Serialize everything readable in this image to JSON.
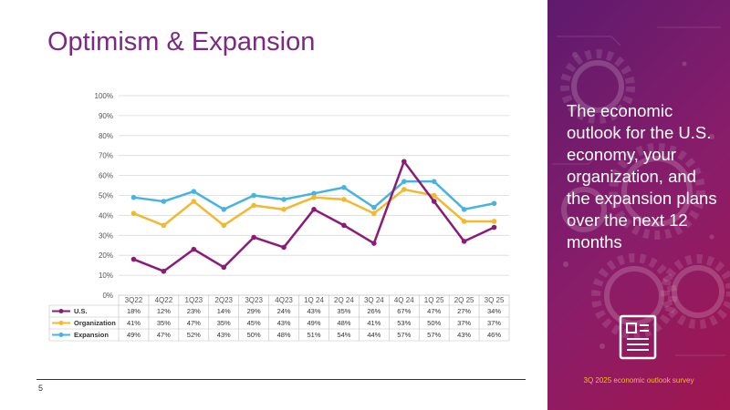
{
  "slide": {
    "title": "Optimism & Expansion",
    "page_number": "5"
  },
  "panel": {
    "description": "The economic outlook for the U.S. economy, your organization, and the expansion plans over the next 12 months",
    "survey_label": "3Q 2025 economic outlook survey",
    "icon": "document-icon"
  },
  "colors": {
    "title": "#7B2A83",
    "us": "#8B1A78",
    "organization": "#F2B82F",
    "expansion": "#46B3E0",
    "survey_label": "#F2B82F"
  },
  "chart_data": {
    "type": "line",
    "title": "",
    "xlabel": "",
    "ylabel": "",
    "ylim": [
      0,
      100
    ],
    "y_ticks": [
      "0%",
      "10%",
      "20%",
      "30%",
      "40%",
      "50%",
      "60%",
      "70%",
      "80%",
      "90%",
      "100%"
    ],
    "grid": true,
    "legend": "data-table-left",
    "categories": [
      "3Q22",
      "4Q22",
      "1Q23",
      "2Q23",
      "3Q23",
      "4Q23",
      "1Q 24",
      "2Q 24",
      "3Q 24",
      "4Q 24",
      "1Q 25",
      "2Q 25",
      "3Q 25"
    ],
    "series": [
      {
        "name": "U.S.",
        "color": "#8B1A78",
        "values": [
          18,
          12,
          23,
          14,
          29,
          24,
          43,
          35,
          26,
          67,
          47,
          27,
          34
        ],
        "labels": [
          "18%",
          "12%",
          "23%",
          "14%",
          "29%",
          "24%",
          "43%",
          "35%",
          "26%",
          "67%",
          "47%",
          "27%",
          "34%"
        ]
      },
      {
        "name": "Organization",
        "color": "#F2B82F",
        "values": [
          41,
          35,
          47,
          35,
          45,
          43,
          49,
          48,
          41,
          53,
          50,
          37,
          37
        ],
        "labels": [
          "41%",
          "35%",
          "47%",
          "35%",
          "45%",
          "43%",
          "49%",
          "48%",
          "41%",
          "53%",
          "50%",
          "37%",
          "37%"
        ]
      },
      {
        "name": "Expansion",
        "color": "#46B3E0",
        "values": [
          49,
          47,
          52,
          43,
          50,
          48,
          51,
          54,
          44,
          57,
          57,
          43,
          46
        ],
        "labels": [
          "49%",
          "47%",
          "52%",
          "43%",
          "50%",
          "48%",
          "51%",
          "54%",
          "44%",
          "57%",
          "57%",
          "43%",
          "46%"
        ]
      }
    ]
  }
}
